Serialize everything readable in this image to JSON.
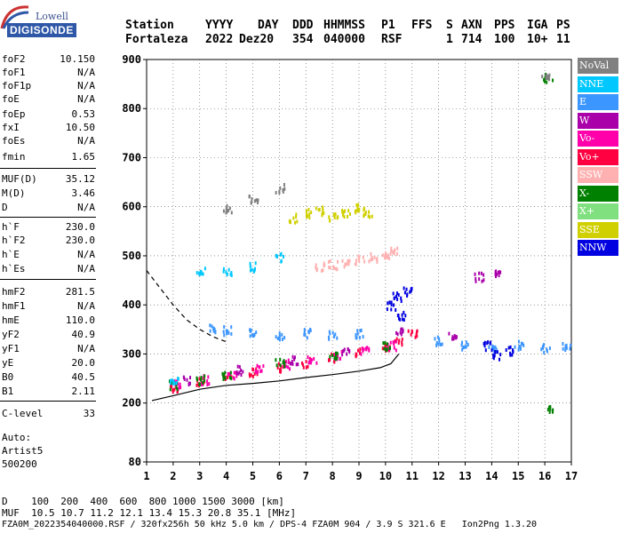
{
  "logo": {
    "line1": "Lowell",
    "line2": "DIGISONDE"
  },
  "header": {
    "labels": [
      "Station",
      "YYYY",
      "DAY",
      "DDD",
      "HHMMSS",
      "P1",
      "FFS",
      "S",
      "AXN",
      "PPS",
      "IGA",
      "PS"
    ],
    "values": [
      "Fortaleza",
      "2022",
      "Dez20",
      "354",
      "040000",
      "RSF",
      "1",
      "714",
      "100",
      "10+",
      "11"
    ]
  },
  "params": [
    {
      "label": "foF2",
      "value": "10.150"
    },
    {
      "label": "foF1",
      "value": "N/A"
    },
    {
      "label": "foF1p",
      "value": "N/A"
    },
    {
      "label": "foE",
      "value": "N/A"
    },
    {
      "label": "foEp",
      "value": "0.53"
    },
    {
      "label": "fxI",
      "value": "10.50"
    },
    {
      "label": "foEs",
      "value": "N/A"
    },
    {
      "label": "fmin",
      "value": "1.65"
    },
    {
      "label": "MUF(D)",
      "value": "35.12"
    },
    {
      "label": "M(D)",
      "value": "3.46"
    },
    {
      "label": "D",
      "value": "N/A"
    },
    {
      "label": "h`F",
      "value": "230.0"
    },
    {
      "label": "h`F2",
      "value": "230.0"
    },
    {
      "label": "h`E",
      "value": "N/A"
    },
    {
      "label": "h`Es",
      "value": "N/A"
    },
    {
      "label": "hmF2",
      "value": "281.5"
    },
    {
      "label": "hmF1",
      "value": "N/A"
    },
    {
      "label": "hmE",
      "value": "110.0"
    },
    {
      "label": "yF2",
      "value": "40.9"
    },
    {
      "label": "yF1",
      "value": "N/A"
    },
    {
      "label": "yE",
      "value": "20.0"
    },
    {
      "label": "B0",
      "value": "40.5"
    },
    {
      "label": "B1",
      "value": "2.11"
    },
    {
      "label": "C-level",
      "value": "33"
    }
  ],
  "auto": {
    "line1": "Auto:",
    "line2": "Artist5",
    "line3": "500200"
  },
  "legend": [
    {
      "label": "NoVal",
      "color": "#808080"
    },
    {
      "label": "NNE",
      "color": "#00c8ff"
    },
    {
      "label": "E",
      "color": "#3c96ff"
    },
    {
      "label": "W",
      "color": "#aa00aa"
    },
    {
      "label": "Vo-",
      "color": "#ff00aa"
    },
    {
      "label": "Vo+",
      "color": "#ff0040"
    },
    {
      "label": "SSW",
      "color": "#ffb0b0"
    },
    {
      "label": "X-",
      "color": "#008000"
    },
    {
      "label": "X+",
      "color": "#80e080"
    },
    {
      "label": "SSE",
      "color": "#d0d000"
    },
    {
      "label": "NNW",
      "color": "#0000e0"
    }
  ],
  "footer": {
    "line1": "D    100  200  400  600  800 1000 1500 3000 [km]",
    "line2": "MUF  10.5 10.7 11.2 12.1 13.4 15.3 20.8 35.1 [MHz]",
    "line3": "FZA0M_2022354040000.RSF / 320fx256h 50 kHz 5.0 km / DPS-4 FZA0M 904 / 3.9 S 321.6 E   Ion2Png 1.3.20"
  },
  "chart_data": {
    "type": "scatter",
    "title": "",
    "xlabel": "",
    "ylabel": "",
    "xlim": [
      1,
      17
    ],
    "ylim": [
      80,
      900
    ],
    "xticks": [
      1,
      2,
      3,
      4,
      5,
      6,
      7,
      8,
      9,
      10,
      11,
      12,
      13,
      14,
      15,
      16,
      17
    ],
    "yticks": [
      80,
      200,
      300,
      400,
      500,
      600,
      700,
      800,
      900
    ],
    "grid": true,
    "legend_position": "right",
    "series": [
      {
        "name": "E",
        "color": "#3c96ff",
        "points": [
          [
            3.5,
            355
          ],
          [
            4.0,
            350
          ],
          [
            5.0,
            345
          ],
          [
            6.0,
            340
          ],
          [
            7.0,
            345
          ],
          [
            8.0,
            340
          ],
          [
            9.0,
            345
          ],
          [
            12.0,
            330
          ],
          [
            13.0,
            320
          ],
          [
            14.0,
            310
          ],
          [
            15.0,
            320
          ],
          [
            16.0,
            315
          ],
          [
            16.8,
            320
          ]
        ]
      },
      {
        "name": "Vo+",
        "color": "#ff0040",
        "points": [
          [
            2.0,
            235
          ],
          [
            3.0,
            245
          ],
          [
            4.0,
            255
          ],
          [
            5.0,
            265
          ],
          [
            6.0,
            275
          ],
          [
            7.0,
            285
          ],
          [
            8.0,
            295
          ],
          [
            9.0,
            305
          ],
          [
            10.0,
            315
          ],
          [
            10.5,
            330
          ],
          [
            11.0,
            345
          ]
        ]
      },
      {
        "name": "Vo-",
        "color": "#ff00aa",
        "points": [
          [
            2.2,
            240
          ],
          [
            3.2,
            250
          ],
          [
            4.2,
            262
          ],
          [
            5.2,
            272
          ],
          [
            6.2,
            282
          ],
          [
            7.2,
            292
          ],
          [
            8.2,
            300
          ],
          [
            9.2,
            310
          ],
          [
            10.2,
            320
          ]
        ]
      },
      {
        "name": "W",
        "color": "#aa00aa",
        "points": [
          [
            2.5,
            250
          ],
          [
            4.5,
            270
          ],
          [
            6.5,
            290
          ],
          [
            8.5,
            305
          ],
          [
            10.5,
            350
          ],
          [
            12.5,
            340
          ],
          [
            13.5,
            460
          ],
          [
            14.2,
            470
          ]
        ]
      },
      {
        "name": "NNW",
        "color": "#0000e0",
        "points": [
          [
            10.2,
            400
          ],
          [
            10.4,
            420
          ],
          [
            10.6,
            380
          ],
          [
            10.8,
            430
          ],
          [
            13.8,
            320
          ],
          [
            14.2,
            300
          ],
          [
            14.6,
            310
          ]
        ]
      },
      {
        "name": "X-",
        "color": "#008000",
        "points": [
          [
            2.0,
            240
          ],
          [
            3.0,
            250
          ],
          [
            4.0,
            260
          ],
          [
            6.0,
            285
          ],
          [
            8.0,
            300
          ],
          [
            10.0,
            320
          ],
          [
            16.1,
            865
          ],
          [
            16.1,
            190
          ]
        ]
      },
      {
        "name": "SSE",
        "color": "#d0d000",
        "points": [
          [
            6.5,
            580
          ],
          [
            7.0,
            590
          ],
          [
            7.5,
            595
          ],
          [
            8.0,
            580
          ],
          [
            8.5,
            590
          ],
          [
            9.0,
            600
          ],
          [
            9.3,
            590
          ]
        ]
      },
      {
        "name": "SSW",
        "color": "#ffb0b0",
        "points": [
          [
            7.5,
            480
          ],
          [
            8.0,
            485
          ],
          [
            8.5,
            490
          ],
          [
            9.0,
            495
          ],
          [
            9.5,
            500
          ],
          [
            10.0,
            505
          ],
          [
            10.3,
            510
          ]
        ]
      },
      {
        "name": "NNE",
        "color": "#00c8ff",
        "points": [
          [
            2.0,
            250
          ],
          [
            3.0,
            470
          ],
          [
            4.0,
            470
          ],
          [
            5.0,
            480
          ],
          [
            6.0,
            500
          ]
        ]
      },
      {
        "name": "NoVal",
        "color": "#808080",
        "points": [
          [
            4.0,
            600
          ],
          [
            5.0,
            620
          ],
          [
            6.0,
            640
          ],
          [
            16.0,
            865
          ]
        ]
      }
    ],
    "traces": [
      {
        "style": "solid",
        "color": "#000000",
        "points": [
          [
            1.2,
            205
          ],
          [
            2.0,
            215
          ],
          [
            3.0,
            228
          ],
          [
            4.0,
            236
          ],
          [
            5.0,
            240
          ],
          [
            6.0,
            245
          ],
          [
            7.0,
            252
          ],
          [
            8.0,
            258
          ],
          [
            9.0,
            265
          ],
          [
            9.8,
            272
          ],
          [
            10.2,
            280
          ],
          [
            10.5,
            300
          ]
        ]
      },
      {
        "style": "dashed",
        "color": "#000000",
        "points": [
          [
            1.0,
            470
          ],
          [
            1.5,
            435
          ],
          [
            2.0,
            400
          ],
          [
            2.5,
            370
          ],
          [
            3.0,
            350
          ],
          [
            3.5,
            335
          ],
          [
            4.0,
            325
          ]
        ]
      }
    ]
  }
}
